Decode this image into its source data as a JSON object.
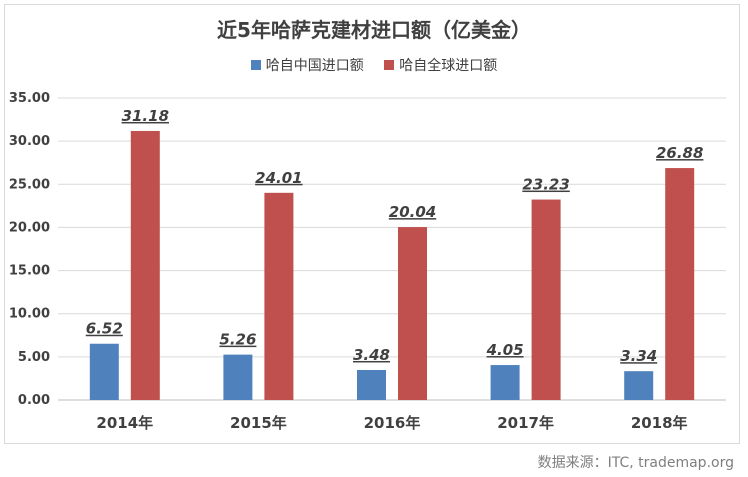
{
  "chart_data": {
    "type": "bar",
    "title": "近5年哈萨克建材进口额（亿美金）",
    "categories": [
      "2014年",
      "2015年",
      "2016年",
      "2017年",
      "2018年"
    ],
    "series": [
      {
        "name": "哈自中国进口额",
        "values": [
          6.52,
          5.26,
          3.48,
          4.05,
          3.34
        ],
        "labels": [
          "6.52",
          "5.26",
          "3.48",
          "4.05",
          "3.34"
        ],
        "color": "#4f81bd"
      },
      {
        "name": "哈自全球进口额",
        "values": [
          31.18,
          24.01,
          20.04,
          23.23,
          26.88
        ],
        "labels": [
          "31.18",
          "24.01",
          "20.04",
          "23.23",
          "26.88"
        ],
        "color": "#c0504d"
      }
    ],
    "yticks": [
      "0.00",
      "5.00",
      "10.00",
      "15.00",
      "20.00",
      "25.00",
      "30.00",
      "35.00"
    ],
    "ylim": [
      0,
      35
    ],
    "grid": true,
    "legend_position": "top"
  },
  "source": "数据来源：ITC, trademap.org",
  "colors": {
    "gridline": "#d9d9d9",
    "axis": "#bfbfbf"
  }
}
